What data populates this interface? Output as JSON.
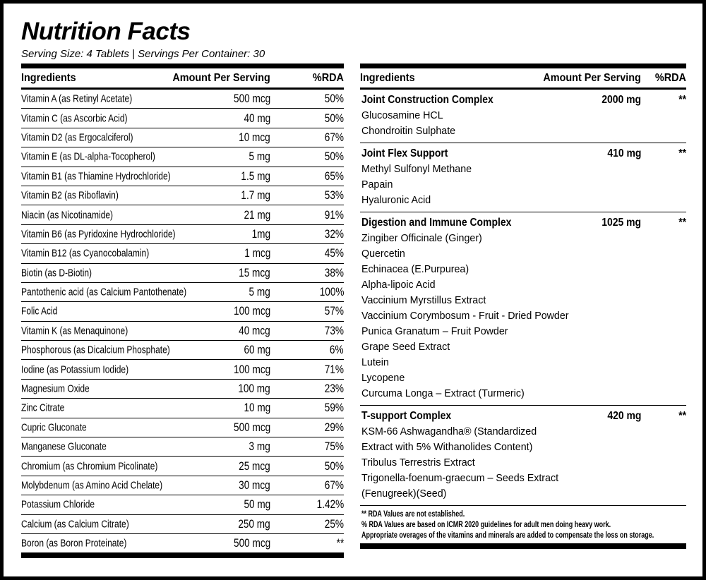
{
  "header": {
    "title": "Nutrition Facts",
    "serving": "Serving Size: 4 Tablets | Servings Per Container: 30"
  },
  "left_table": {
    "columns": [
      "Ingredients",
      "Amount Per Serving",
      "%RDA"
    ],
    "rows": [
      [
        "Vitamin A (as Retinyl Acetate)",
        "500 mcg",
        "50%"
      ],
      [
        "Vitamin C (as Ascorbic Acid)",
        "40 mg",
        "50%"
      ],
      [
        "Vitamin D2 (as Ergocalciferol)",
        "10 mcg",
        "67%"
      ],
      [
        "Vitamin E (as DL-alpha-Tocopherol)",
        "5 mg",
        "50%"
      ],
      [
        "Vitamin B1 (as Thiamine Hydrochloride)",
        "1.5 mg",
        "65%"
      ],
      [
        "Vitamin B2 (as Riboflavin)",
        "1.7 mg",
        "53%"
      ],
      [
        "Niacin (as Nicotinamide)",
        "21 mg",
        "91%"
      ],
      [
        "Vitamin B6 (as Pyridoxine Hydrochloride)",
        "1mg",
        "32%"
      ],
      [
        "Vitamin B12 (as Cyanocobalamin)",
        "1 mcg",
        "45%"
      ],
      [
        "Biotin (as D-Biotin)",
        "15 mcg",
        "38%"
      ],
      [
        "Pantothenic acid (as Calcium Pantothenate)",
        "5 mg",
        "100%"
      ],
      [
        "Folic Acid",
        "100 mcg",
        "57%"
      ],
      [
        "Vitamin K (as Menaquinone)",
        "40 mcg",
        "73%"
      ],
      [
        "Phosphorous (as Dicalcium Phosphate)",
        "60 mg",
        "6%"
      ],
      [
        "Iodine (as Potassium Iodide)",
        "100 mcg",
        "71%"
      ],
      [
        "Magnesium Oxide",
        "100 mg",
        "23%"
      ],
      [
        "Zinc Citrate",
        "10 mg",
        "59%"
      ],
      [
        "Cupric Gluconate",
        "500 mcg",
        "29%"
      ],
      [
        "Manganese Gluconate",
        "3 mg",
        "75%"
      ],
      [
        "Chromium (as Chromium Picolinate)",
        "25 mcg",
        "50%"
      ],
      [
        "Molybdenum (as Amino Acid Chelate)",
        "30 mcg",
        "67%"
      ],
      [
        "Potassium Chloride",
        "50 mg",
        "1.42%"
      ],
      [
        "Calcium (as Calcium Citrate)",
        "250 mg",
        "25%"
      ],
      [
        "Boron (as Boron Proteinate)",
        "500 mcg",
        "**"
      ]
    ]
  },
  "right_table": {
    "columns": [
      "Ingredients",
      "Amount Per Serving",
      "%RDA"
    ],
    "groups": [
      {
        "name": "Joint Construction Complex",
        "amount": "2000 mg",
        "rda": "**",
        "items": [
          "Glucosamine HCL",
          "Chondroitin Sulphate"
        ]
      },
      {
        "name": "Joint Flex Support",
        "amount": "410 mg",
        "rda": "**",
        "items": [
          "Methyl Sulfonyl Methane",
          "Papain",
          "Hyaluronic Acid"
        ]
      },
      {
        "name": "Digestion and Immune Complex",
        "amount": "1025 mg",
        "rda": "**",
        "items": [
          "Zingiber Officinale (Ginger)",
          "Quercetin",
          "Echinacea (E.Purpurea)",
          "Alpha-lipoic Acid",
          "Vaccinium Myrstillus Extract",
          "Vaccinium Corymbosum - Fruit - Dried Powder",
          "Punica Granatum – Fruit Powder",
          "Grape Seed Extract",
          "Lutein",
          "Lycopene",
          "Curcuma Longa – Extract (Turmeric)"
        ]
      },
      {
        "name": "T-support Complex",
        "amount": "420 mg",
        "rda": "**",
        "items": [
          "KSM-66 Ashwagandha® (Standardized Extract with 5% Withanolides Content)",
          "Tribulus Terrestris Extract",
          "Trigonella-foenum-graecum – Seeds Extract (Fenugreek)(Seed)"
        ]
      }
    ]
  },
  "footnotes": [
    "** RDA Values are not established.",
    "% RDA Values are based on ICMR 2020 guidelines for adult men doing heavy work.",
    "Appropriate overages of the vitamins and minerals are added to compensate the loss on storage."
  ]
}
